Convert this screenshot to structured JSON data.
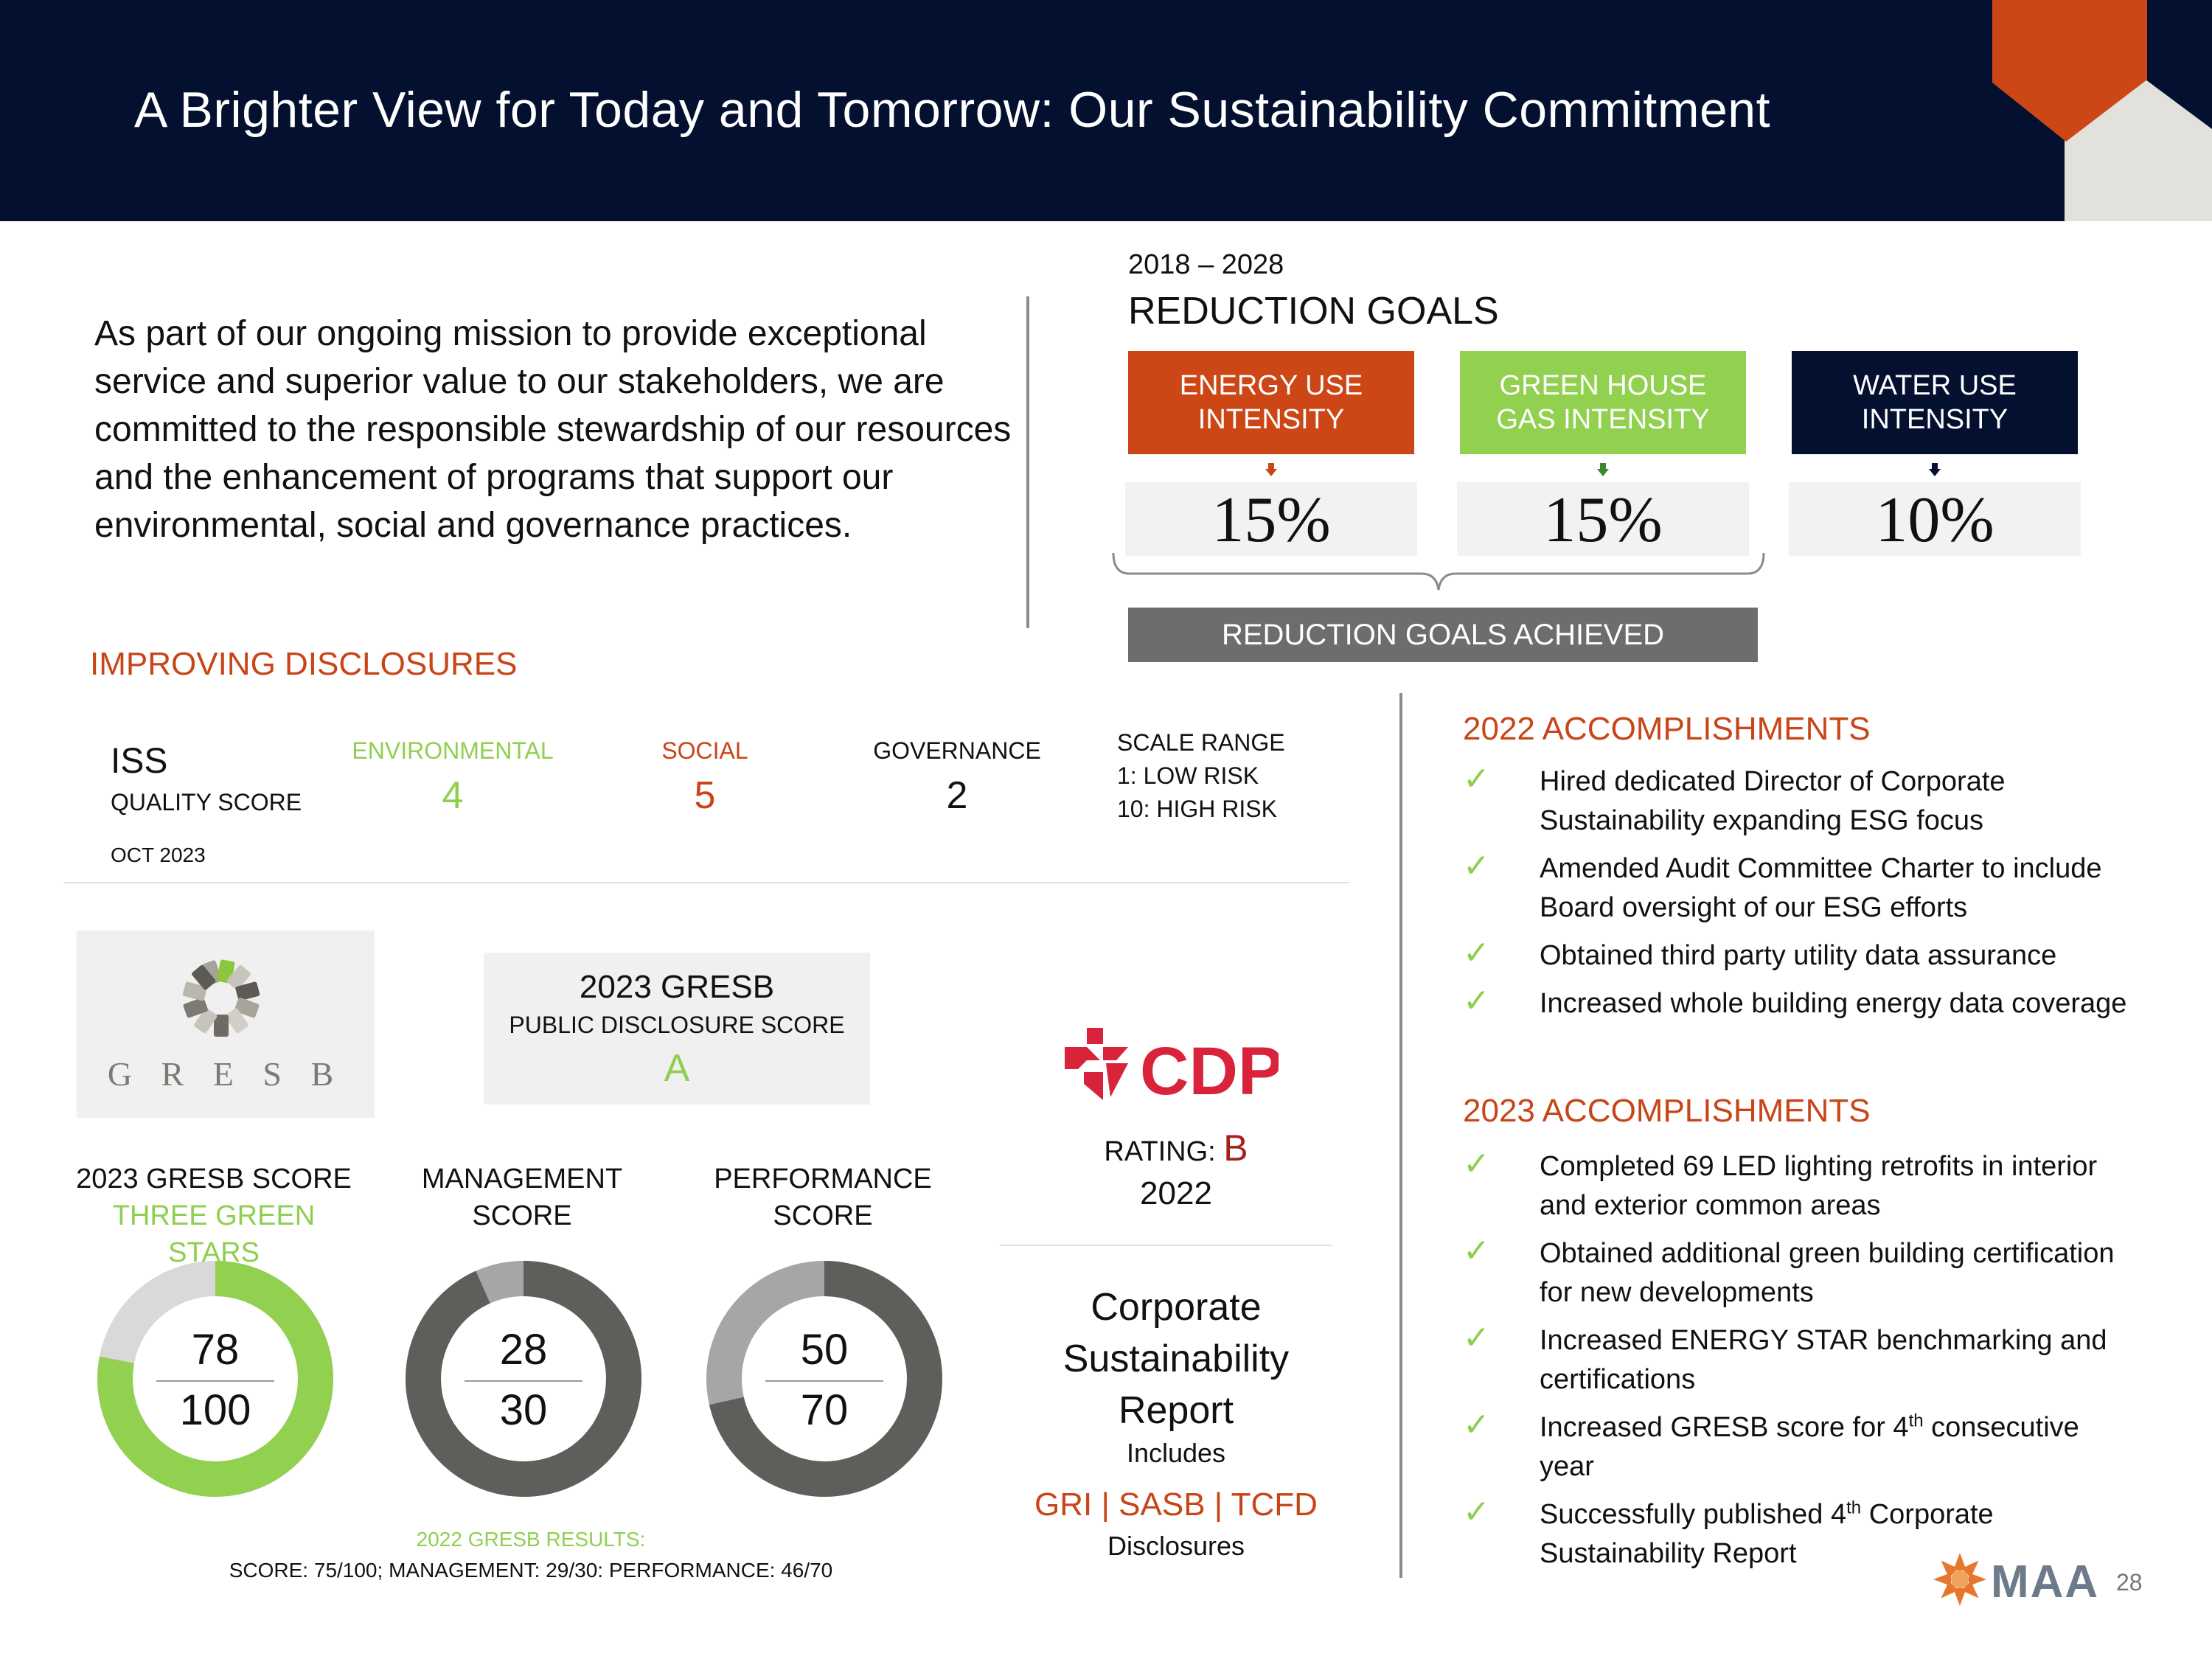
{
  "title": "A Brighter View for Today and Tomorrow: Our Sustainability Commitment",
  "intro": "As part of our ongoing mission to provide exceptional service and superior value to our stakeholders, we are committed to the responsible stewardship of our resources and the enhancement of programs that support our environmental, social and governance practices.",
  "reduction_goals": {
    "years": "2018 – 2028",
    "heading": "REDUCTION GOALS",
    "goals": [
      {
        "label": "ENERGY USE INTENSITY",
        "value": "15%",
        "color": "#cc4616"
      },
      {
        "label": "GREEN HOUSE GAS INTENSITY",
        "value": "15%",
        "color": "#92d050"
      },
      {
        "label": "WATER USE INTENSITY",
        "value": "10%",
        "color": "#041030"
      }
    ],
    "achieved": "REDUCTION GOALS ACHIEVED"
  },
  "disclosures": {
    "heading": "IMPROVING DISCLOSURES",
    "iss_title": "ISS",
    "iss_subtitle": "QUALITY SCORE",
    "iss_date": "OCT 2023",
    "scores": [
      {
        "label": "ENVIRONMENTAL",
        "value": "4",
        "color": "#8fcf4f"
      },
      {
        "label": "SOCIAL",
        "value": "5",
        "color": "#c84517"
      },
      {
        "label": "GOVERNANCE",
        "value": "2",
        "color": "#111111"
      }
    ],
    "scale_range": [
      "SCALE RANGE",
      "1: LOW RISK",
      "10: HIGH RISK"
    ]
  },
  "gresb": {
    "logo_text": "G R E S B",
    "public_title": "2023 GRESB",
    "public_subtitle": "PUBLIC DISCLOSURE SCORE",
    "public_value": "A",
    "score_title": "2023 GRESB SCORE",
    "score_subtitle": "THREE GREEN STARS",
    "management_label": [
      "MANAGEMENT",
      "SCORE"
    ],
    "performance_label": [
      "PERFORMANCE",
      "SCORE"
    ],
    "donuts": [
      {
        "score": 78,
        "max": 100,
        "score_text": "78",
        "max_text": "100",
        "color": "#92d050"
      },
      {
        "score": 28,
        "max": 30,
        "score_text": "28",
        "max_text": "30",
        "color": "#5e5f5b"
      },
      {
        "score": 50,
        "max": 70,
        "score_text": "50",
        "max_text": "70",
        "color": "#5e5f5b"
      }
    ],
    "results_2022_heading": "2022 GRESB RESULTS:",
    "results_2022": "SCORE: 75/100; MANAGEMENT: 29/30: PERFORMANCE: 46/70"
  },
  "cdp": {
    "logo_text": "CDP",
    "rating_label": "RATING:",
    "rating_value": "B",
    "year": "2022"
  },
  "csr": {
    "title_lines": [
      "Corporate",
      "Sustainability",
      "Report"
    ],
    "includes": "Includes",
    "frameworks": "GRI | SASB | TCFD",
    "disclosures": "Disclosures"
  },
  "accomplishments_2022": {
    "heading": "2022 ACCOMPLISHMENTS",
    "items": [
      "Hired dedicated Director of Corporate Sustainability expanding ESG focus",
      "Amended Audit Committee Charter to include Board oversight of our ESG efforts",
      "Obtained third party utility data assurance",
      "Increased whole building energy data coverage"
    ]
  },
  "accomplishments_2023": {
    "heading": "2023 ACCOMPLISHMENTS",
    "items": [
      {
        "text": "Completed 69 LED lighting retrofits in interior and exterior common areas"
      },
      {
        "text": "Obtained additional green building certification for new developments"
      },
      {
        "text": "Increased ENERGY STAR benchmarking and certifications"
      },
      {
        "pre": "Increased GRESB score for 4",
        "sup": "th",
        "post": " consecutive year"
      },
      {
        "pre": "Successfully published 4",
        "sup": "th",
        "post": " Corporate Sustainability Report"
      }
    ]
  },
  "footer": {
    "logo_text": "MAA",
    "page_number": "28"
  }
}
